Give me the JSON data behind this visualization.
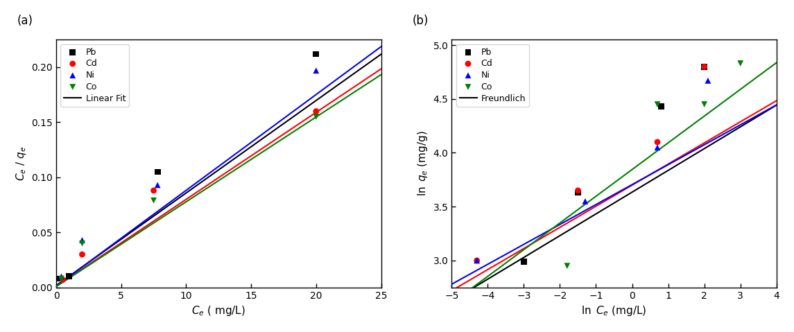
{
  "panel_a": {
    "title": "(a)",
    "xlabel": "C_e ( mg/L)",
    "ylabel": "C_e / q_e",
    "xlim": [
      0,
      25
    ],
    "ylim": [
      0.0,
      0.225
    ],
    "yticks": [
      0.0,
      0.05,
      0.1,
      0.15,
      0.2
    ],
    "xticks": [
      0,
      5,
      10,
      15,
      20,
      25
    ],
    "scatter": {
      "Pb": {
        "x": [
          0.25,
          1.0,
          7.8,
          20.0
        ],
        "y": [
          0.008,
          0.01,
          0.105,
          0.212
        ],
        "color": "black",
        "marker": "s"
      },
      "Cd": {
        "x": [
          0.5,
          2.0,
          7.5,
          20.0
        ],
        "y": [
          0.007,
          0.03,
          0.088,
          0.16
        ],
        "color": "red",
        "marker": "o"
      },
      "Ni": {
        "x": [
          0.4,
          2.0,
          7.8,
          20.0
        ],
        "y": [
          0.01,
          0.043,
          0.093,
          0.197
        ],
        "color": "blue",
        "marker": "^"
      },
      "Co": {
        "x": [
          0.4,
          2.0,
          7.5,
          20.0
        ],
        "y": [
          0.008,
          0.04,
          0.079,
          0.155
        ],
        "color": "green",
        "marker": "v"
      }
    },
    "lines": {
      "Pb": {
        "slope": 0.0084,
        "intercept": 0.0018,
        "color": "black"
      },
      "Cd": {
        "slope": 0.0079,
        "intercept": 0.001,
        "color": "red"
      },
      "Ni": {
        "slope": 0.0087,
        "intercept": 0.0012,
        "color": "blue"
      },
      "Co": {
        "slope": 0.0077,
        "intercept": 0.0008,
        "color": "green"
      }
    },
    "legend_label": "Linear Fit"
  },
  "panel_b": {
    "title": "(b)",
    "xlabel": "ln C_e (mg/L)",
    "ylabel": "ln q_e (mg/g)",
    "xlim": [
      -5,
      4
    ],
    "ylim": [
      2.75,
      5.05
    ],
    "yticks": [
      3.0,
      3.5,
      4.0,
      4.5,
      5.0
    ],
    "xticks": [
      -5,
      -4,
      -3,
      -2,
      -1,
      0,
      1,
      2,
      3,
      4
    ],
    "scatter": {
      "Pb": {
        "x": [
          -3.0,
          -1.5,
          0.8,
          2.0
        ],
        "y": [
          2.99,
          3.63,
          4.43,
          4.8
        ],
        "color": "black",
        "marker": "s"
      },
      "Cd": {
        "x": [
          -4.3,
          -1.5,
          0.7,
          2.0
        ],
        "y": [
          3.0,
          3.65,
          4.1,
          4.8
        ],
        "color": "red",
        "marker": "o"
      },
      "Ni": {
        "x": [
          -4.3,
          -1.3,
          0.7,
          2.1
        ],
        "y": [
          3.0,
          3.55,
          4.05,
          4.67
        ],
        "color": "blue",
        "marker": "^"
      },
      "Co": {
        "x": [
          -1.8,
          0.7,
          2.0,
          3.0
        ],
        "y": [
          2.95,
          4.45,
          4.45,
          4.83
        ],
        "color": "green",
        "marker": "v"
      }
    },
    "lines": {
      "Pb": {
        "slope": 0.202,
        "intercept": 3.635,
        "color": "black"
      },
      "Cd": {
        "slope": 0.196,
        "intercept": 3.7,
        "color": "red"
      },
      "Ni": {
        "slope": 0.185,
        "intercept": 3.705,
        "color": "blue"
      },
      "Co": {
        "slope": 0.248,
        "intercept": 3.845,
        "color": "green"
      }
    },
    "legend_label": "Freundlich"
  }
}
